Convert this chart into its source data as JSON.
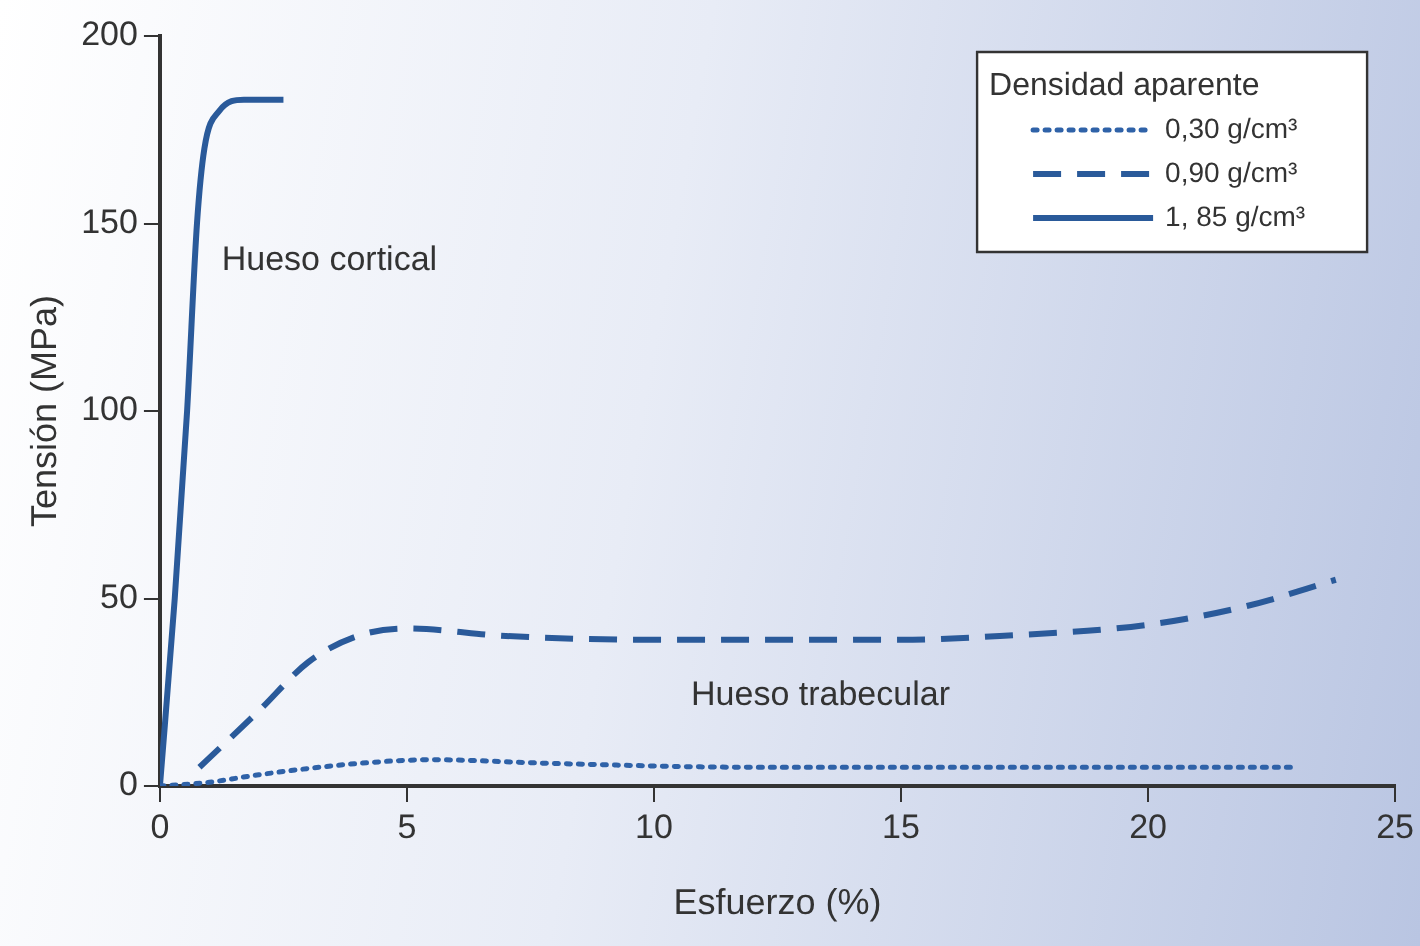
{
  "chart_data": {
    "type": "line",
    "xlabel": "Esfuerzo (%)",
    "ylabel": "Tensión (MPa)",
    "legend_title": "Densidad aparente",
    "legend": "top right",
    "grid": false,
    "marker": "none",
    "xlim": [
      0,
      25
    ],
    "xticks": [
      0,
      5,
      10,
      15,
      20,
      25
    ],
    "ylim": [
      0,
      200
    ],
    "yticks": [
      0,
      50,
      100,
      150,
      200
    ],
    "series": [
      {
        "name": "0,30 g/cm³",
        "color": "#2f62a8",
        "line_style": "dotted",
        "x": [
          0,
          1,
          2,
          4,
          5.5,
          8,
          12,
          18,
          23
        ],
        "values": [
          0,
          1,
          3,
          6,
          7,
          6,
          5,
          5,
          5
        ]
      },
      {
        "name": "0,90 g/cm³",
        "color": "#2a5a9a",
        "line_style": "dashed",
        "x": [
          0.8,
          2,
          3,
          4,
          5,
          7,
          10,
          15,
          17,
          20,
          22,
          23.8
        ],
        "values": [
          5,
          20,
          33,
          40,
          42,
          40,
          39,
          39,
          40,
          43,
          48,
          55
        ]
      },
      {
        "name": "1, 85 g/cm³",
        "color": "#2a5a9a",
        "line_style": "solid",
        "x": [
          0,
          0.3,
          0.55,
          0.75,
          0.9,
          1.2,
          1.7,
          2.5
        ],
        "values": [
          0,
          50,
          100,
          150,
          170,
          180,
          183,
          183
        ]
      }
    ],
    "annotations": [
      "Hueso cortical",
      "Hueso trabecular"
    ]
  }
}
